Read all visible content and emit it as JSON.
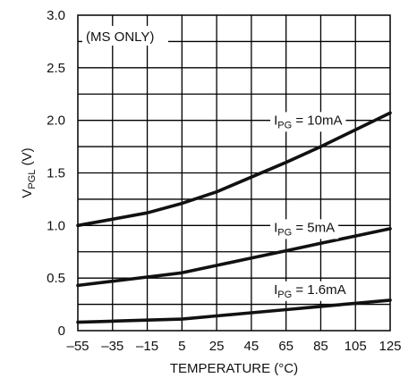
{
  "chart_data": {
    "type": "line",
    "title": "",
    "annotation": "(MS ONLY)",
    "xlabel": "TEMPERATURE (°C)",
    "ylabel": {
      "main": "V",
      "sub": "PGL",
      "unit": " (V)"
    },
    "xlim": [
      -55,
      125
    ],
    "ylim": [
      0,
      3.0
    ],
    "x_ticks": [
      -55,
      -35,
      -15,
      5,
      25,
      45,
      65,
      85,
      105,
      125
    ],
    "x_tick_labels": [
      "–55",
      "–35",
      "–15",
      "5",
      "25",
      "45",
      "65",
      "85",
      "105",
      "125"
    ],
    "y_ticks": [
      0,
      0.5,
      1.0,
      1.5,
      2.0,
      2.5,
      3.0
    ],
    "y_tick_labels": [
      "0",
      "0.5",
      "1.0",
      "1.5",
      "2.0",
      "2.5",
      "3.0"
    ],
    "grid": true,
    "series": [
      {
        "label_main": "I",
        "label_sub": "PG",
        "label_rest": " = 10mA",
        "label_at": [
          58,
          1.96
        ],
        "points": [
          [
            -55,
            1.0
          ],
          [
            -35,
            1.06
          ],
          [
            -15,
            1.12
          ],
          [
            5,
            1.21
          ],
          [
            25,
            1.32
          ],
          [
            45,
            1.46
          ],
          [
            65,
            1.6
          ],
          [
            85,
            1.75
          ],
          [
            105,
            1.91
          ],
          [
            125,
            2.07
          ]
        ]
      },
      {
        "label_main": "I",
        "label_sub": "PG",
        "label_rest": " = 5mA",
        "label_at": [
          58,
          0.94
        ],
        "points": [
          [
            -55,
            0.43
          ],
          [
            -35,
            0.47
          ],
          [
            -15,
            0.51
          ],
          [
            5,
            0.55
          ],
          [
            25,
            0.62
          ],
          [
            45,
            0.69
          ],
          [
            65,
            0.76
          ],
          [
            85,
            0.83
          ],
          [
            105,
            0.9
          ],
          [
            125,
            0.97
          ]
        ]
      },
      {
        "label_main": "I",
        "label_sub": "PG",
        "label_rest": " = 1.6mA",
        "label_at": [
          58,
          0.35
        ],
        "points": [
          [
            -55,
            0.08
          ],
          [
            -35,
            0.09
          ],
          [
            -15,
            0.1
          ],
          [
            5,
            0.11
          ],
          [
            25,
            0.14
          ],
          [
            45,
            0.17
          ],
          [
            65,
            0.2
          ],
          [
            85,
            0.23
          ],
          [
            105,
            0.26
          ],
          [
            125,
            0.29
          ]
        ]
      }
    ]
  }
}
